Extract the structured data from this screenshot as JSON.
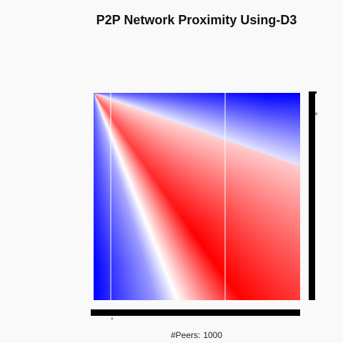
{
  "title": "P2P Network Proximity Using-D3",
  "footer": {
    "label": "#Peers:",
    "value": "1000"
  },
  "chart_data": {
    "type": "heatmap",
    "title": "P2P Network Proximity Using-D3",
    "color_scale": {
      "low": "#0000ff",
      "mid": "#ffffff",
      "high": "#ff0000"
    },
    "legend": "right",
    "grid": false
  },
  "colors": {
    "background": "#f9f9f9",
    "axis": "#000000"
  }
}
